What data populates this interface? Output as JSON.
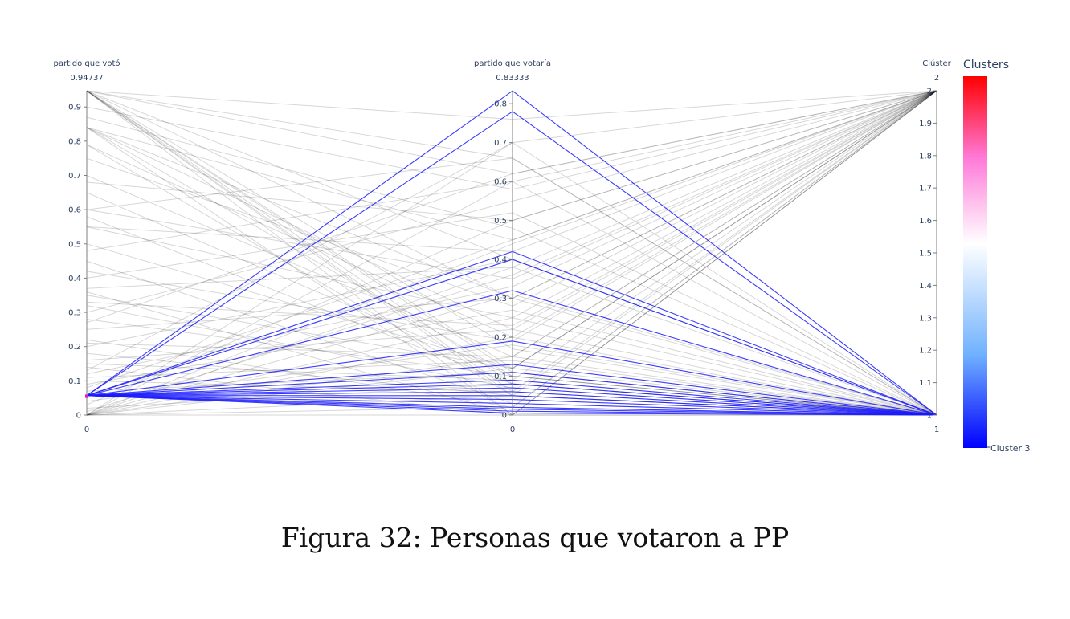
{
  "caption": "Figura 32: Personas que votaron a PP",
  "chart_data": {
    "type": "parallel_coordinates",
    "axes": [
      {
        "label": "partido que votó",
        "range": [
          0,
          0.94737
        ],
        "top_value": "0.94737",
        "bottom_value": "0",
        "ticks": [
          "0",
          "0.1",
          "0.2",
          "0.3",
          "0.4",
          "0.5",
          "0.6",
          "0.7",
          "0.8",
          "0.9"
        ],
        "brush": [
          0.05,
          0.06
        ]
      },
      {
        "label": "partido que votaría",
        "range": [
          0,
          0.83333
        ],
        "top_value": "0.83333",
        "bottom_value": "0",
        "ticks": [
          "0",
          "0.1",
          "0.2",
          "0.3",
          "0.4",
          "0.5",
          "0.6",
          "0.7",
          "0.8"
        ]
      },
      {
        "label": "Clúster",
        "range": [
          1,
          2
        ],
        "top_value": "2",
        "bottom_value": "1",
        "ticks": [
          "1",
          "1.1",
          "1.2",
          "1.3",
          "1.4",
          "1.5",
          "1.6",
          "1.7",
          "1.8",
          "1.9",
          "2"
        ]
      }
    ],
    "colorscale": {
      "title": "Clusters",
      "label": "Cluster 3",
      "stops": [
        "#0000ff",
        "#6fb1ff",
        "#ffffff",
        "#ff7ad8",
        "#ff0000"
      ]
    },
    "highlighted_lines": [
      [
        0.057,
        0.833
      ],
      [
        0.057,
        0.78
      ],
      [
        0.057,
        0.42
      ],
      [
        0.057,
        0.4
      ],
      [
        0.057,
        0.32
      ],
      [
        0.057,
        0.19
      ],
      [
        0.057,
        0.13
      ],
      [
        0.057,
        0.11
      ],
      [
        0.057,
        0.09
      ],
      [
        0.057,
        0.08
      ],
      [
        0.057,
        0.07
      ],
      [
        0.057,
        0.06
      ],
      [
        0.057,
        0.05
      ],
      [
        0.057,
        0.04
      ],
      [
        0.057,
        0.03
      ],
      [
        0.057,
        0.02
      ],
      [
        0.057,
        0.015
      ],
      [
        0.057,
        0.01
      ],
      [
        0.057,
        0.005
      ]
    ],
    "highlighted_cluster": 1,
    "background_lines": [
      [
        0.947,
        0.11,
        1
      ],
      [
        0.947,
        0.08,
        1
      ],
      [
        0.947,
        0.06,
        1
      ],
      [
        0.947,
        0.0,
        2
      ],
      [
        0.947,
        0.12,
        2
      ],
      [
        0.947,
        0.62,
        2
      ],
      [
        0.947,
        0.4,
        1
      ],
      [
        0.947,
        0.17,
        1
      ],
      [
        0.947,
        0.3,
        2
      ],
      [
        0.947,
        0.05,
        1
      ],
      [
        0.84,
        0.1,
        1
      ],
      [
        0.84,
        0.3,
        1
      ],
      [
        0.84,
        0.45,
        2
      ],
      [
        0.84,
        0.0,
        1
      ],
      [
        0.84,
        0.22,
        2
      ],
      [
        0.79,
        0.05,
        1
      ],
      [
        0.79,
        0.2,
        2
      ],
      [
        0.7,
        0.15,
        1
      ],
      [
        0.68,
        0.5,
        2
      ],
      [
        0.65,
        0.1,
        1
      ],
      [
        0.6,
        0.35,
        2
      ],
      [
        0.58,
        0.08,
        1
      ],
      [
        0.55,
        0.25,
        1
      ],
      [
        0.5,
        0.12,
        2
      ],
      [
        0.48,
        0.6,
        1
      ],
      [
        0.45,
        0.03,
        1
      ],
      [
        0.42,
        0.19,
        2
      ],
      [
        0.37,
        0.38,
        1
      ],
      [
        0.36,
        0.0,
        2
      ],
      [
        0.35,
        0.12,
        1
      ],
      [
        0.33,
        0.23,
        2
      ],
      [
        0.32,
        0.07,
        1
      ],
      [
        0.3,
        0.55,
        2
      ],
      [
        0.28,
        0.1,
        1
      ],
      [
        0.25,
        0.3,
        2
      ],
      [
        0.22,
        0.02,
        1
      ],
      [
        0.21,
        0.15,
        2
      ],
      [
        0.2,
        0.4,
        1
      ],
      [
        0.18,
        0.05,
        2
      ],
      [
        0.16,
        0.22,
        1
      ],
      [
        0.15,
        0.09,
        2
      ],
      [
        0.14,
        0.0,
        1
      ],
      [
        0.12,
        0.33,
        2
      ],
      [
        0.11,
        0.14,
        1
      ],
      [
        0.1,
        0.06,
        2
      ],
      [
        0.09,
        0.27,
        1
      ],
      [
        0.08,
        0.45,
        2
      ],
      [
        0.07,
        0.11,
        1
      ],
      [
        0.06,
        0.02,
        2
      ],
      [
        0.04,
        0.18,
        1
      ],
      [
        0.03,
        0.5,
        2
      ],
      [
        0.02,
        0.08,
        1
      ],
      [
        0.01,
        0.36,
        2
      ],
      [
        0.0,
        0.0,
        2
      ],
      [
        0.0,
        0.12,
        2
      ],
      [
        0.0,
        0.25,
        2
      ],
      [
        0.0,
        0.38,
        2
      ],
      [
        0.0,
        0.05,
        1
      ],
      [
        0.0,
        0.6,
        2
      ],
      [
        0.0,
        0.7,
        2
      ],
      [
        0.0,
        0.2,
        1
      ],
      [
        0.0,
        0.44,
        2
      ],
      [
        0.0,
        0.15,
        2
      ],
      [
        0.0,
        0.31,
        1
      ],
      [
        0.0,
        0.02,
        2
      ],
      [
        0.947,
        0.76,
        2
      ],
      [
        0.947,
        0.66,
        1
      ],
      [
        0.9,
        0.58,
        2
      ],
      [
        0.87,
        0.48,
        1
      ],
      [
        0.75,
        0.28,
        2
      ],
      [
        0.6,
        0.66,
        1
      ],
      [
        0.55,
        0.42,
        2
      ],
      [
        0.4,
        0.52,
        1
      ],
      [
        0.27,
        0.62,
        2
      ],
      [
        0.13,
        0.7,
        1
      ]
    ]
  }
}
